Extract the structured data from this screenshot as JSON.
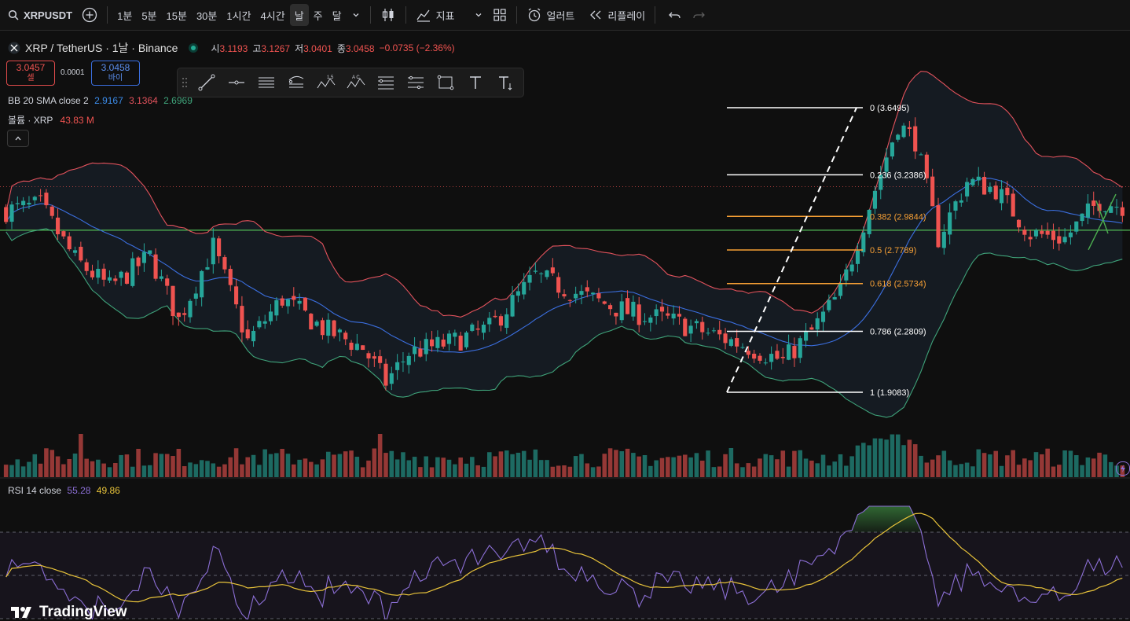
{
  "toolbar": {
    "symbol": "XRPUSDT",
    "intervals": [
      "1분",
      "5분",
      "15분",
      "30분",
      "1시간",
      "4시간",
      "날",
      "주",
      "달"
    ],
    "active_interval": "날",
    "indicators_label": "지표",
    "alert_label": "얼러트",
    "replay_label": "리플레이"
  },
  "legend": {
    "title": "XRP / TetherUS · 1날 · Binance",
    "open_label": "시",
    "open": "3.1193",
    "high_label": "고",
    "high": "3.1267",
    "low_label": "저",
    "low": "3.0401",
    "close_label": "종",
    "close": "3.0458",
    "change": "−0.0735 (−2.36%)",
    "sell_price": "3.0457",
    "sell_label": "셀",
    "spread": "0.0001",
    "buy_price": "3.0458",
    "buy_label": "바이",
    "bb_label": "BB 20 SMA close 2",
    "bb_basis": "2.9167",
    "bb_upper": "3.1364",
    "bb_lower": "2.6969",
    "volume_label": "볼륨 · XRP",
    "volume_value": "43.83 M",
    "rsi_label": "RSI 14 close",
    "rsi_value": "55.28",
    "rsi_ma": "49.86"
  },
  "fib_levels": [
    {
      "ratio": "0",
      "price": "3.6495",
      "text": "0 (3.6495)",
      "color": "#ffffff"
    },
    {
      "ratio": "0.236",
      "price": "3.2386",
      "text": "0.236 (3.2386)",
      "color": "#ffffff"
    },
    {
      "ratio": "0.382",
      "price": "2.9844",
      "text": "0.382 (2.9844)",
      "color": "#f7a035"
    },
    {
      "ratio": "0.5",
      "price": "2.7789",
      "text": "0.5 (2.7789)",
      "color": "#f7a035"
    },
    {
      "ratio": "0.618",
      "price": "2.5734",
      "text": "0.618 (2.5734)",
      "color": "#f7a035"
    },
    {
      "ratio": "0.786",
      "price": "2.2809",
      "text": "0.786 (2.2809)",
      "color": "#ffffff"
    },
    {
      "ratio": "1",
      "price": "1.9083",
      "text": "1 (1.9083)",
      "color": "#ffffff"
    }
  ],
  "colors": {
    "up": "#26a69a",
    "down": "#ef5350",
    "bb_upper": "#e2525c",
    "bb_lower": "#3fa37a",
    "bb_basis": "#3b6fe0",
    "rsi": "#8c6fd6",
    "rsi_ma": "#e8c33a",
    "support_line": "#4caf50"
  },
  "brand": "TradingView"
}
